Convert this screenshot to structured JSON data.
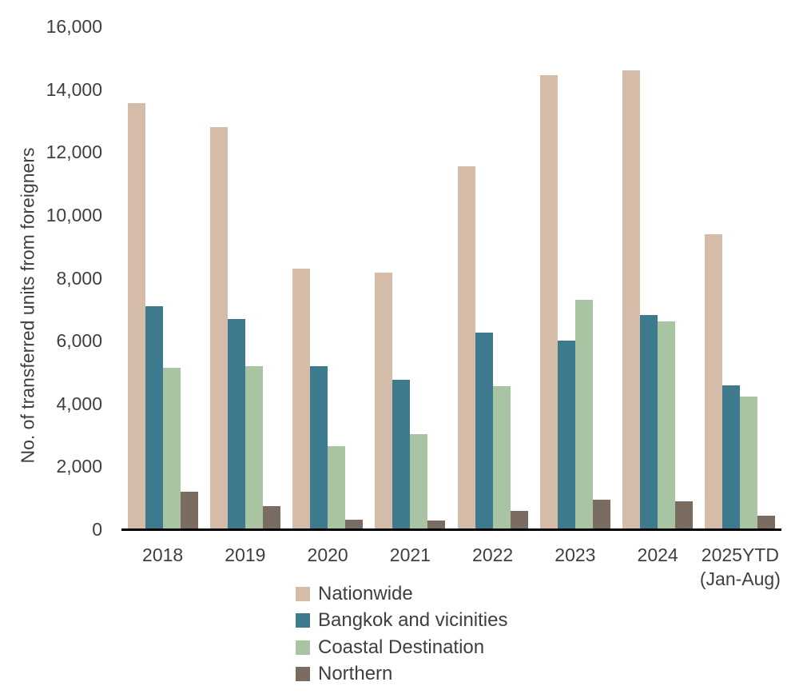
{
  "colors": {
    "nationwide": "#d4bca9",
    "bangkok_and_vicinities": "#3e7a8e",
    "coastal_destination": "#a8c4a2",
    "northern": "#7a6c60",
    "axis_line": "#000000",
    "text": "#3f3f3f",
    "background": "#ffffff"
  },
  "chart_data": {
    "type": "bar",
    "title": "",
    "xlabel": "",
    "ylabel": "No. of transferred units from foreigners",
    "ylim": [
      0,
      16000
    ],
    "ytick_step": 2000,
    "ytick_labels": [
      "0",
      "2,000",
      "4,000",
      "6,000",
      "8,000",
      "10,000",
      "12,000",
      "14,000",
      "16,000"
    ],
    "grid": false,
    "legend_position": "bottom-center",
    "categories": [
      "2018",
      "2019",
      "2020",
      "2021",
      "2022",
      "2023",
      "2024",
      "2025YTD\n(Jan-Aug)"
    ],
    "series": [
      {
        "name": "Nationwide",
        "color": "#d4bca9",
        "values": [
          13550,
          12800,
          8300,
          8170,
          11550,
          14450,
          14600,
          9380
        ]
      },
      {
        "name": "Bangkok and vicinities",
        "color": "#3e7a8e",
        "values": [
          7100,
          6700,
          5200,
          4760,
          6270,
          6000,
          6820,
          4570
        ]
      },
      {
        "name": "Coastal Destination",
        "color": "#a8c4a2",
        "values": [
          5150,
          5200,
          2650,
          3030,
          4550,
          7300,
          6620,
          4230
        ]
      },
      {
        "name": "Northern",
        "color": "#7a6c60",
        "values": [
          1200,
          730,
          310,
          280,
          580,
          940,
          890,
          430
        ]
      }
    ]
  }
}
